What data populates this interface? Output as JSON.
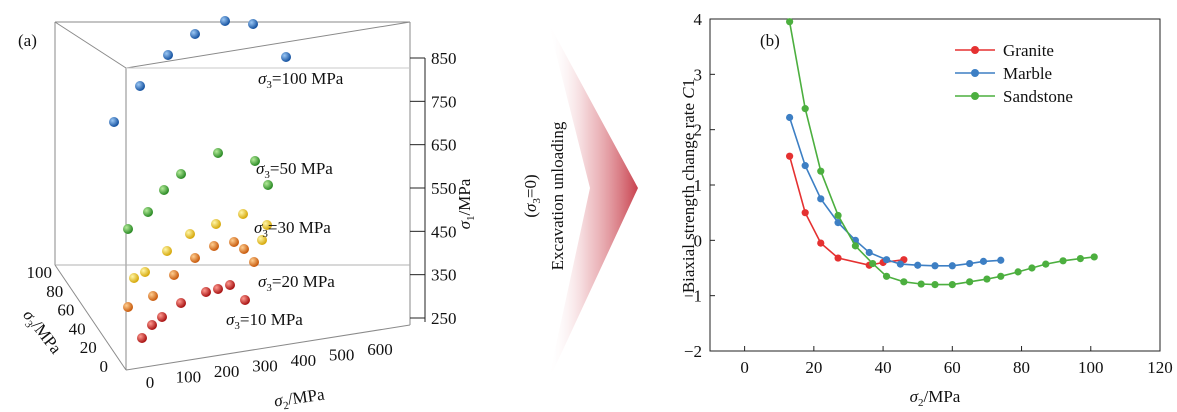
{
  "panel_a": {
    "panel_label": "(a)",
    "x_label_symbol": "σ",
    "x_label_sub": "2",
    "x_label_unit": "/MPa",
    "y_label_symbol": "σ",
    "y_label_sub": "3",
    "y_label_unit": "/MPa",
    "z_label_symbol": "σ",
    "z_label_sub": "1",
    "z_label_unit": "/MPa",
    "x_ticks": [
      "0",
      "100",
      "200",
      "300",
      "400",
      "500",
      "600"
    ],
    "y_ticks": [
      "0",
      "20",
      "40",
      "60",
      "80",
      "100"
    ],
    "z_ticks": [
      "250",
      "350",
      "450",
      "550",
      "650",
      "750",
      "850"
    ],
    "series_labels": [
      {
        "sym": "σ",
        "sub": "3",
        "text": "=100 MPa"
      },
      {
        "sym": "σ",
        "sub": "3",
        "text": "=50 MPa"
      },
      {
        "sym": "σ",
        "sub": "3",
        "text": "=30 MPa"
      },
      {
        "sym": "σ",
        "sub": "3",
        "text": "=20 MPa"
      },
      {
        "sym": "σ",
        "sub": "3",
        "text": "=10 MPa"
      }
    ],
    "colors": {
      "s100": "#1f6fc4",
      "s50": "#3fae3a",
      "s30": "#f2d21a",
      "s20": "#ee7a1c",
      "s10": "#d4221e"
    }
  },
  "arrow": {
    "line1_open": "(",
    "line1_sym": "σ",
    "line1_sub": "3",
    "line1_close": "=0)",
    "line2": "Excavation unloading",
    "color": "#c8424e"
  },
  "chart_data": {
    "type": "line",
    "panel_label": "(b)",
    "title": "",
    "xlabel_symbol": "σ",
    "xlabel_sub": "2",
    "xlabel_unit": "/MPa",
    "ylabel_text": "Biaxial strength change rate ",
    "ylabel_italic": "C",
    "ylabel_suffix": "1",
    "xlim": [
      -10,
      120
    ],
    "ylim": [
      -2,
      4
    ],
    "x_ticks": [
      0,
      20,
      40,
      60,
      80,
      100,
      120
    ],
    "y_ticks": [
      -2,
      -1,
      0,
      1,
      2,
      3,
      4
    ],
    "legend_position": "top-right",
    "series": [
      {
        "name": "Granite",
        "color": "#e53131",
        "x": [
          13,
          17.5,
          22,
          27,
          36,
          40,
          46
        ],
        "y": [
          1.52,
          0.5,
          -0.05,
          -0.32,
          -0.45,
          -0.4,
          -0.35
        ]
      },
      {
        "name": "Marble",
        "color": "#3d7fc4",
        "x": [
          13,
          17.5,
          22,
          27,
          32,
          36,
          41,
          45,
          50,
          55,
          60,
          65,
          69,
          74
        ],
        "y": [
          2.22,
          1.35,
          0.75,
          0.32,
          0.0,
          -0.22,
          -0.35,
          -0.43,
          -0.45,
          -0.46,
          -0.46,
          -0.42,
          -0.38,
          -0.36
        ]
      },
      {
        "name": "Sandstone",
        "color": "#4caf3f",
        "x": [
          13,
          17.5,
          22,
          27,
          32,
          37,
          41,
          46,
          51,
          55,
          60,
          65,
          70,
          74,
          79,
          83,
          87,
          92,
          97,
          101
        ],
        "y": [
          3.95,
          2.38,
          1.25,
          0.45,
          -0.1,
          -0.42,
          -0.65,
          -0.75,
          -0.79,
          -0.8,
          -0.8,
          -0.75,
          -0.7,
          -0.65,
          -0.57,
          -0.5,
          -0.43,
          -0.37,
          -0.33,
          -0.3
        ]
      }
    ]
  }
}
